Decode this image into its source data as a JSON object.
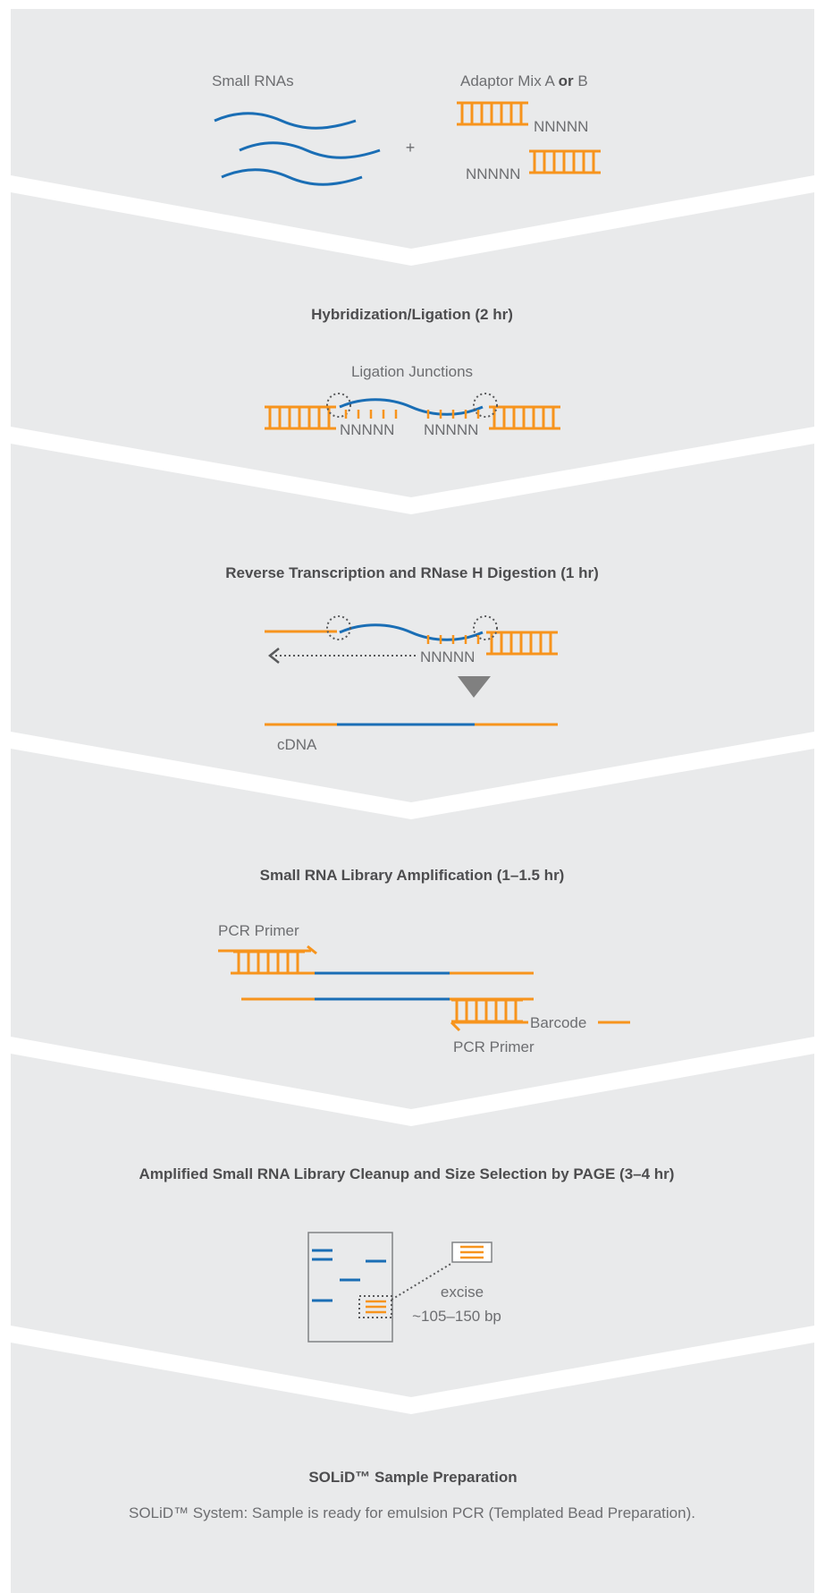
{
  "colors": {
    "panel": "#e9eaeb",
    "orange": "#f7941d",
    "blue": "#1a6eb5",
    "text": "#6d6e71",
    "title": "#4d4d4f",
    "dots": "#58595b",
    "arrowhead": "#808080"
  },
  "step1": {
    "small_rnas": "Small RNAs",
    "adaptor_prefix": "Adaptor Mix  A ",
    "adaptor_or": "or",
    "adaptor_suffix": " B",
    "plus": "+",
    "nnnnn_top": "NNNNN",
    "nnnnn_bottom": "NNNNN"
  },
  "step2": {
    "title": "Hybridization/Ligation (2 hr)",
    "junctions": "Ligation Junctions",
    "nnnnn_left": "NNNNN",
    "nnnnn_right": "NNNNN"
  },
  "step3": {
    "title": "Reverse Transcription and RNase H Digestion (1 hr)",
    "nnnnn": "NNNNN",
    "cdna": "cDNA"
  },
  "step4": {
    "title": "Small RNA Library Amplification (1–1.5 hr)",
    "primer_top": "PCR Primer",
    "primer_bottom": "PCR Primer",
    "barcode": "Barcode"
  },
  "step5": {
    "title": "Amplified Small RNA Library Cleanup and Size Selection by PAGE  (3–4 hr)",
    "excise": "excise",
    "size": "~105–150 bp"
  },
  "step6": {
    "title": "SOLiD™ Sample Preparation",
    "body": "SOLiD™ System: Sample is ready for emulsion PCR (Templated Bead Preparation)."
  }
}
